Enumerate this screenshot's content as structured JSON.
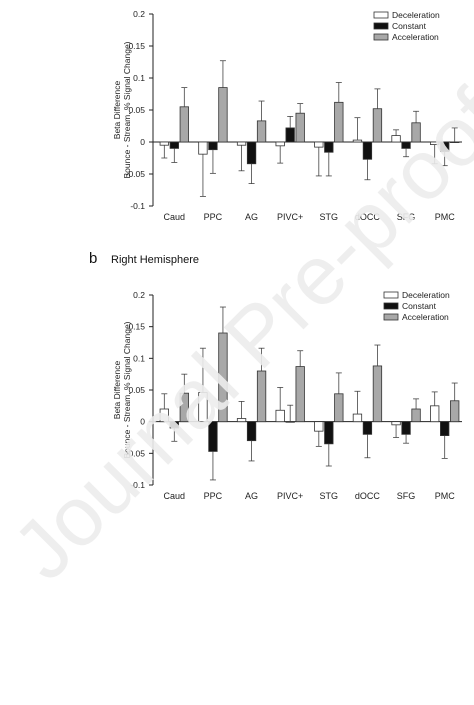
{
  "watermark": "Journal Pre-proof",
  "colors": {
    "deceleration": "#ffffff",
    "constant": "#111111",
    "acceleration": "#a8a8a8",
    "axis": "#222222"
  },
  "chart_data": [
    {
      "type": "bar",
      "panel": "",
      "title": "",
      "ylabel": "Beta Difference\nBounce - Stream, % Signal Change)",
      "xlabel": "",
      "ylim": [
        -0.1,
        0.2
      ],
      "yticks": [
        -0.1,
        -0.05,
        0,
        0.05,
        0.1,
        0.15,
        0.2
      ],
      "legend_position": "top-right",
      "categories": [
        "Caud",
        "PPC",
        "AG",
        "PIVC+",
        "STG",
        "dOCC",
        "SFG",
        "PMC"
      ],
      "series": [
        {
          "name": "Deceleration",
          "values": [
            -0.005,
            -0.019,
            -0.005,
            -0.006,
            -0.008,
            0.003,
            0.01,
            -0.004
          ],
          "errors": [
            0.02,
            0.066,
            0.04,
            0.027,
            0.045,
            0.035,
            0.009,
            0.03
          ]
        },
        {
          "name": "Constant",
          "values": [
            -0.01,
            -0.012,
            -0.034,
            0.022,
            -0.016,
            -0.027,
            -0.01,
            -0.015
          ],
          "errors": [
            0.022,
            0.037,
            0.031,
            0.018,
            0.037,
            0.032,
            0.013,
            0.022
          ]
        },
        {
          "name": "Acceleration",
          "values": [
            0.055,
            0.085,
            0.033,
            0.045,
            0.062,
            0.052,
            0.03,
            0.0
          ],
          "errors": [
            0.03,
            0.042,
            0.031,
            0.015,
            0.031,
            0.031,
            0.018,
            0.022
          ]
        }
      ]
    },
    {
      "type": "bar",
      "panel": "b",
      "title": "Right Hemisphere",
      "ylabel": "Beta Difference\nBounce - Stream, % Signal Change)",
      "xlabel": "",
      "ylim": [
        -0.1,
        0.2
      ],
      "yticks": [
        -0.1,
        -0.05,
        0,
        0.05,
        0.1,
        0.15,
        0.2
      ],
      "legend_position": "top-right",
      "categories": [
        "Caud",
        "PPC",
        "AG",
        "PIVC+",
        "STG",
        "dOCC",
        "SFG",
        "PMC"
      ],
      "series": [
        {
          "name": "Deceleration",
          "values": [
            0.02,
            0.046,
            0.005,
            0.018,
            -0.015,
            0.012,
            -0.005,
            0.025
          ],
          "errors": [
            0.024,
            0.07,
            0.027,
            0.036,
            0.024,
            0.036,
            0.02,
            0.022
          ]
        },
        {
          "name": "Constant",
          "values": [
            -0.01,
            -0.047,
            -0.03,
            0.0,
            -0.035,
            -0.02,
            -0.02,
            -0.022
          ],
          "errors": [
            0.021,
            0.045,
            0.032,
            0.026,
            0.035,
            0.037,
            0.014,
            0.036
          ]
        },
        {
          "name": "Acceleration",
          "values": [
            0.045,
            0.14,
            0.08,
            0.087,
            0.044,
            0.088,
            0.02,
            0.033
          ],
          "errors": [
            0.03,
            0.041,
            0.036,
            0.025,
            0.033,
            0.033,
            0.016,
            0.028
          ]
        }
      ]
    }
  ]
}
